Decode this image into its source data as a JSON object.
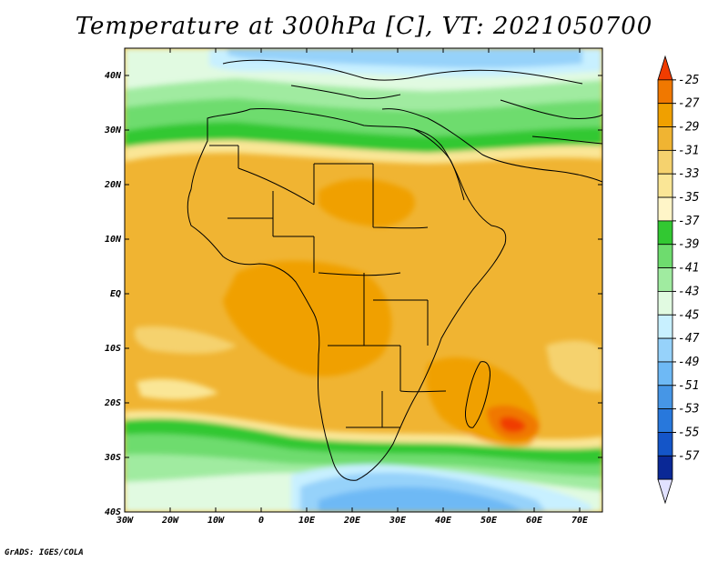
{
  "title": "Temperature at 300hPa [C], VT: 2021050700",
  "credit": "GrADS: IGES/COLA",
  "map": {
    "lon_range": [
      -30,
      75
    ],
    "lat_range": [
      -40,
      45
    ],
    "lon_ticks": [
      {
        "value": -30,
        "label": "30W"
      },
      {
        "value": -20,
        "label": "20W"
      },
      {
        "value": -10,
        "label": "10W"
      },
      {
        "value": 0,
        "label": "0"
      },
      {
        "value": 10,
        "label": "10E"
      },
      {
        "value": 20,
        "label": "20E"
      },
      {
        "value": 30,
        "label": "30E"
      },
      {
        "value": 40,
        "label": "40E"
      },
      {
        "value": 50,
        "label": "50E"
      },
      {
        "value": 60,
        "label": "60E"
      },
      {
        "value": 70,
        "label": "70E"
      }
    ],
    "lat_ticks": [
      {
        "value": 40,
        "label": "40N"
      },
      {
        "value": 30,
        "label": "30N"
      },
      {
        "value": 20,
        "label": "20N"
      },
      {
        "value": 10,
        "label": "10N"
      },
      {
        "value": 0,
        "label": "EQ"
      },
      {
        "value": -10,
        "label": "10S"
      },
      {
        "value": -20,
        "label": "20S"
      },
      {
        "value": -30,
        "label": "30S"
      },
      {
        "value": -40,
        "label": "40S"
      }
    ]
  },
  "colorbar": {
    "levels": [
      "-25",
      "-27",
      "-29",
      "-31",
      "-33",
      "-35",
      "-37",
      "-39",
      "-41",
      "-43",
      "-45",
      "-47",
      "-49",
      "-51",
      "-53",
      "-55",
      "-57"
    ],
    "colors": [
      "#f03c00",
      "#f07800",
      "#f0a000",
      "#f0b432",
      "#f5d26e",
      "#fae696",
      "#fff5c8",
      "#32c832",
      "#6edc6e",
      "#a0eba0",
      "#e1fae1",
      "#c8f0ff",
      "#96d2fa",
      "#6eb9f5",
      "#4696e6",
      "#2878dc",
      "#1455c8",
      "#0a2896",
      "#e1e1ff"
    ]
  }
}
